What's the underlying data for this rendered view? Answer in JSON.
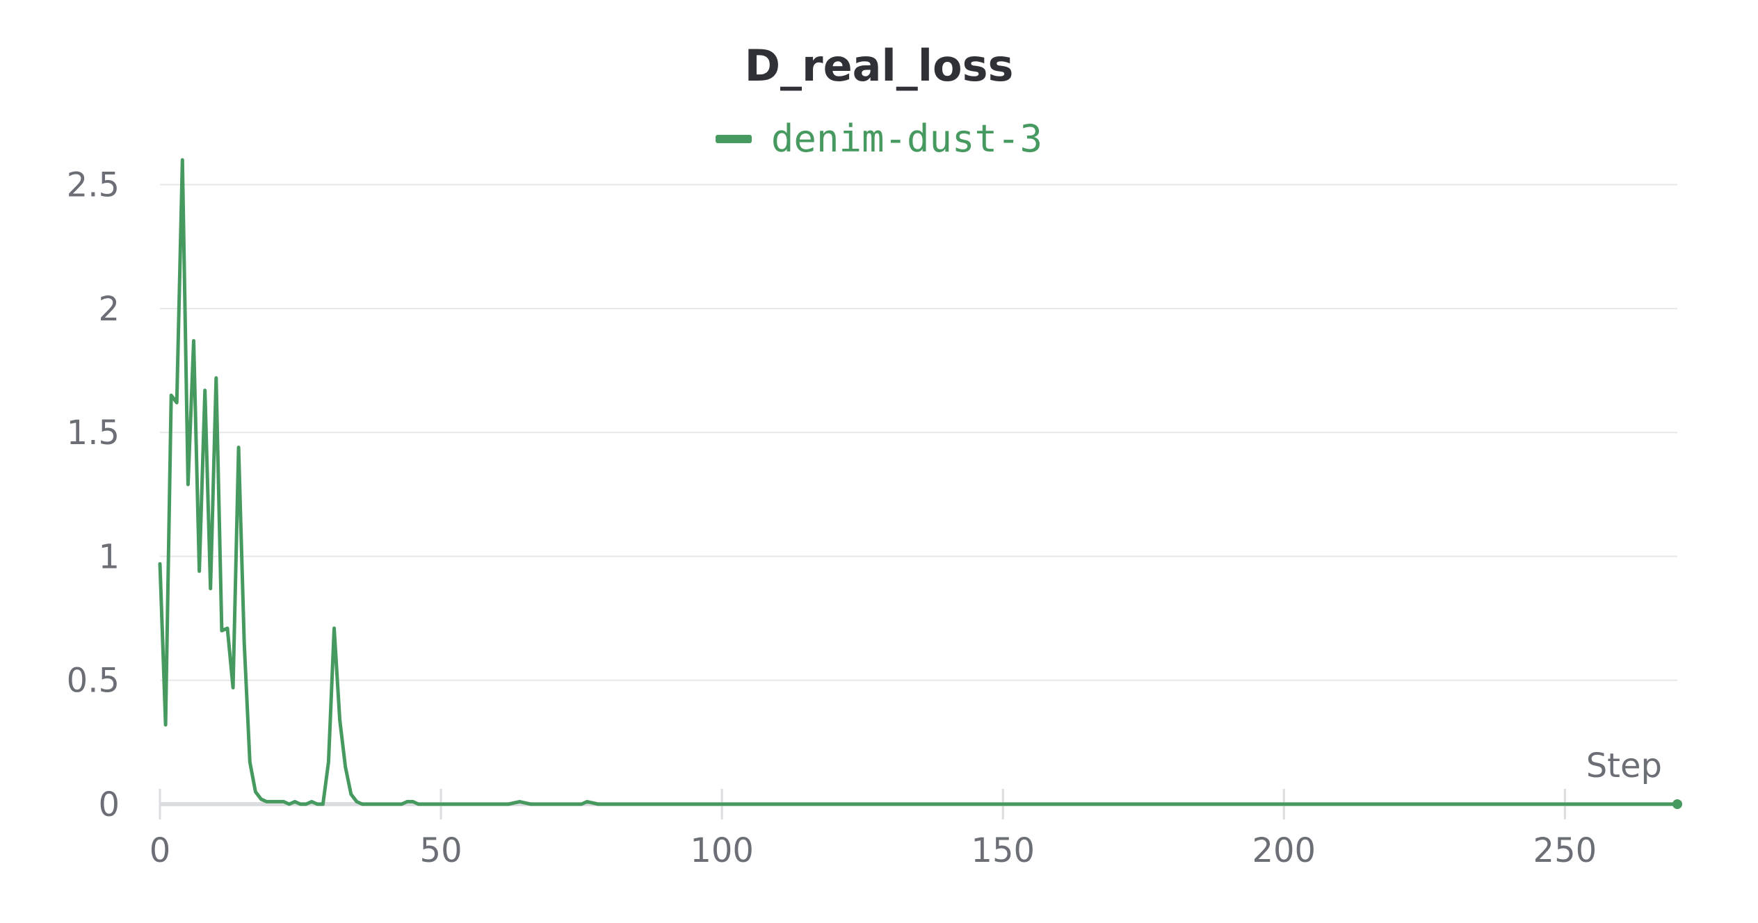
{
  "chart_data": {
    "type": "line",
    "title": "D_real_loss",
    "xlabel": "Step",
    "ylabel": "",
    "xlim": [
      0,
      270
    ],
    "ylim": [
      0,
      2.6
    ],
    "x_ticks": [
      0,
      50,
      100,
      150,
      200,
      250
    ],
    "y_ticks": [
      0,
      0.5,
      1,
      1.5,
      2,
      2.5
    ],
    "x_tick_labels": [
      "0",
      "50",
      "100",
      "150",
      "200",
      "250"
    ],
    "y_tick_labels": [
      "0",
      "0.5",
      "1",
      "1.5",
      "2",
      "2.5"
    ],
    "grid": true,
    "legend_position": "top-center",
    "series": [
      {
        "name": "denim-dust-3",
        "color": "#479a5f",
        "x": [
          0,
          1,
          2,
          3,
          4,
          5,
          6,
          7,
          8,
          9,
          10,
          11,
          12,
          13,
          14,
          15,
          16,
          17,
          18,
          19,
          20,
          21,
          22,
          23,
          24,
          25,
          26,
          27,
          28,
          29,
          30,
          31,
          32,
          33,
          34,
          35,
          36,
          37,
          38,
          39,
          40,
          41,
          42,
          43,
          44,
          45,
          46,
          48,
          50,
          55,
          60,
          62,
          64,
          66,
          70,
          75,
          76,
          78,
          80,
          85,
          90,
          100,
          110,
          120,
          130,
          140,
          150,
          160,
          170,
          180,
          190,
          200,
          210,
          220,
          230,
          240,
          250,
          260,
          270
        ],
        "values": [
          0.97,
          0.32,
          1.65,
          1.62,
          2.6,
          1.29,
          1.87,
          0.94,
          1.67,
          0.87,
          1.72,
          0.7,
          0.71,
          0.47,
          1.44,
          0.65,
          0.17,
          0.05,
          0.02,
          0.01,
          0.01,
          0.01,
          0.01,
          0.0,
          0.01,
          0.0,
          0.0,
          0.01,
          0.0,
          0.0,
          0.17,
          0.71,
          0.34,
          0.15,
          0.04,
          0.01,
          0.0,
          0.0,
          0.0,
          0.0,
          0.0,
          0.0,
          0.0,
          0.0,
          0.01,
          0.01,
          0.0,
          0.0,
          0.0,
          0.0,
          0.0,
          0.0,
          0.01,
          0.0,
          0.0,
          0.0,
          0.01,
          0.0,
          0.0,
          0.0,
          0.0,
          0.0,
          0.0,
          0.0,
          0.0,
          0.0,
          0.0,
          0.0,
          0.0,
          0.0,
          0.0,
          0.0,
          0.0,
          0.0,
          0.0,
          0.0,
          0.0,
          0.0,
          0.0
        ]
      }
    ]
  }
}
